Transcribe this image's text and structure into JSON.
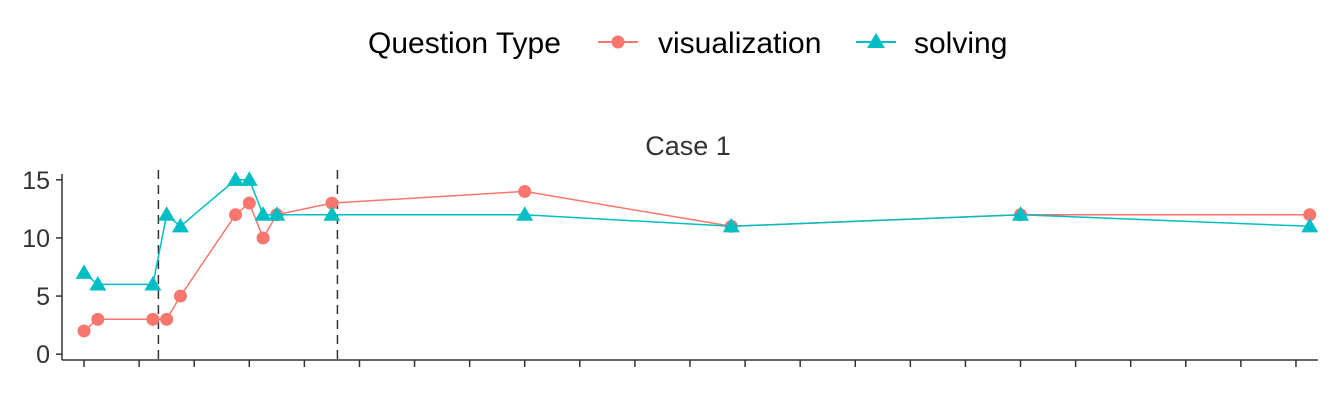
{
  "chart_data": {
    "type": "line",
    "title": "Case 1",
    "legend": {
      "title": "Question Type",
      "position": "top",
      "entries": [
        "visualization",
        "solving"
      ]
    },
    "xlabel": "",
    "ylabel": "",
    "ylim": [
      -0.5,
      15.5
    ],
    "y_ticks": [
      0,
      5,
      10,
      15
    ],
    "xlim": [
      0.6,
      23.4
    ],
    "x_tick_count": 23,
    "x_tick_labels": [],
    "vlines": [
      2.35,
      5.6
    ],
    "grid": false,
    "series": [
      {
        "name": "visualization",
        "color": "#F8766D",
        "marker": "circle",
        "points": [
          [
            1.0,
            2
          ],
          [
            1.25,
            3
          ],
          [
            2.25,
            3
          ],
          [
            2.5,
            3
          ],
          [
            2.75,
            5
          ],
          [
            3.75,
            12
          ],
          [
            4.0,
            13
          ],
          [
            4.25,
            10
          ],
          [
            4.5,
            12
          ],
          [
            5.5,
            13
          ],
          [
            9.0,
            14
          ],
          [
            12.75,
            11
          ],
          [
            18.0,
            12
          ],
          [
            23.25,
            12
          ]
        ]
      },
      {
        "name": "solving",
        "color": "#00BFC4",
        "marker": "triangle",
        "points": [
          [
            1.0,
            7
          ],
          [
            1.25,
            6
          ],
          [
            2.25,
            6
          ],
          [
            2.5,
            12
          ],
          [
            2.75,
            11
          ],
          [
            3.75,
            15
          ],
          [
            4.0,
            15
          ],
          [
            4.25,
            12
          ],
          [
            4.5,
            12
          ],
          [
            5.5,
            12
          ],
          [
            9.0,
            12
          ],
          [
            12.75,
            11
          ],
          [
            18.0,
            12
          ],
          [
            23.25,
            11
          ]
        ]
      }
    ]
  }
}
